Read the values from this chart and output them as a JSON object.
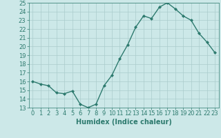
{
  "x": [
    0,
    1,
    2,
    3,
    4,
    5,
    6,
    7,
    8,
    9,
    10,
    11,
    12,
    13,
    14,
    15,
    16,
    17,
    18,
    19,
    20,
    21,
    22,
    23
  ],
  "y": [
    16.0,
    15.7,
    15.5,
    14.7,
    14.6,
    14.9,
    13.4,
    13.0,
    13.4,
    15.5,
    16.7,
    18.6,
    20.2,
    22.2,
    23.5,
    23.2,
    24.5,
    25.0,
    24.3,
    23.5,
    23.0,
    21.5,
    20.5,
    19.3
  ],
  "xlim": [
    -0.5,
    23.5
  ],
  "ylim": [
    13,
    25
  ],
  "yticks": [
    13,
    14,
    15,
    16,
    17,
    18,
    19,
    20,
    21,
    22,
    23,
    24,
    25
  ],
  "xticks": [
    0,
    1,
    2,
    3,
    4,
    5,
    6,
    7,
    8,
    9,
    10,
    11,
    12,
    13,
    14,
    15,
    16,
    17,
    18,
    19,
    20,
    21,
    22,
    23
  ],
  "xlabel": "Humidex (Indice chaleur)",
  "line_color": "#2d7a6e",
  "marker": "D",
  "marker_size": 2.0,
  "line_width": 1.0,
  "bg_color": "#cce8e8",
  "grid_color": "#aacccc",
  "tick_fontsize": 6.0,
  "xlabel_fontsize": 7.0
}
